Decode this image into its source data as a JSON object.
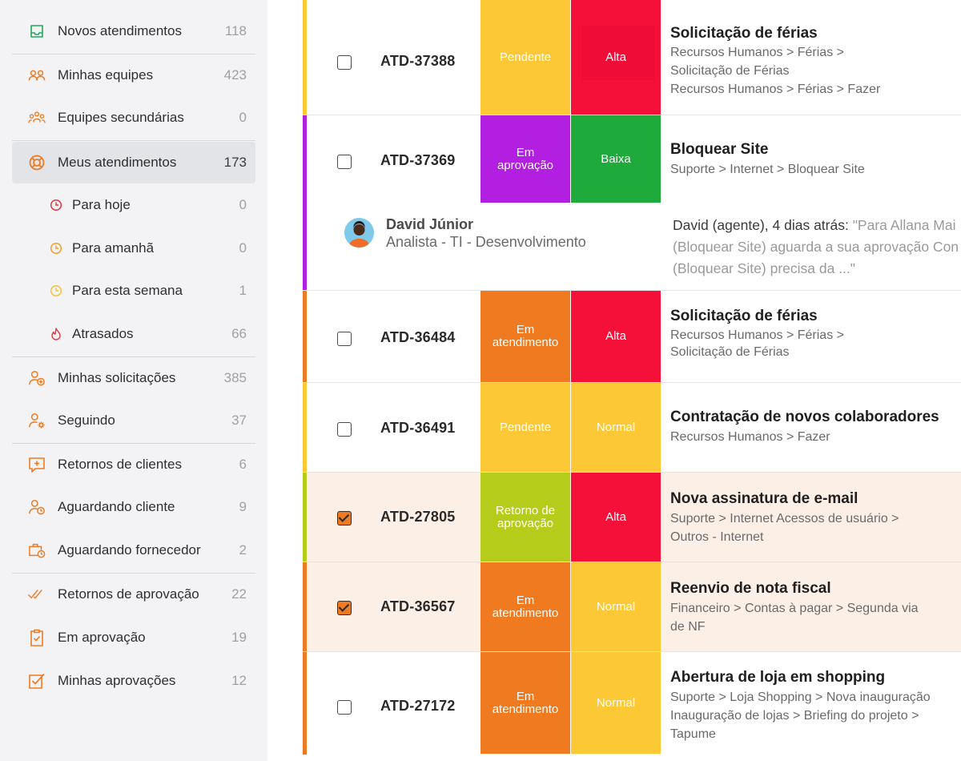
{
  "sidebar": {
    "items": [
      {
        "label": "Novos atendimentos",
        "count": "118",
        "icon": "inbox-icon"
      },
      {
        "label": "Minhas equipes",
        "count": "423",
        "icon": "team-icon"
      },
      {
        "label": "Equipes secundárias",
        "count": "0",
        "icon": "secondary-teams-icon"
      },
      {
        "label": "Meus atendimentos",
        "count": "173",
        "icon": "lifebuoy-icon"
      },
      {
        "label": "Para hoje",
        "count": "0",
        "icon": "clock-today-icon"
      },
      {
        "label": "Para amanhã",
        "count": "0",
        "icon": "clock-tomorrow-icon"
      },
      {
        "label": "Para esta semana",
        "count": "1",
        "icon": "clock-week-icon"
      },
      {
        "label": "Atrasados",
        "count": "66",
        "icon": "flame-icon"
      },
      {
        "label": "Minhas solicitações",
        "count": "385",
        "icon": "user-add-icon"
      },
      {
        "label": "Seguindo",
        "count": "37",
        "icon": "user-gear-icon"
      },
      {
        "label": "Retornos de clientes",
        "count": "6",
        "icon": "message-plus-icon"
      },
      {
        "label": "Aguardando cliente",
        "count": "9",
        "icon": "user-clock-icon"
      },
      {
        "label": "Aguardando fornecedor",
        "count": "2",
        "icon": "briefcase-clock-icon"
      },
      {
        "label": "Retornos de aprovação",
        "count": "22",
        "icon": "double-check-icon"
      },
      {
        "label": "Em aprovação",
        "count": "19",
        "icon": "clipboard-check-icon"
      },
      {
        "label": "Minhas aprovações",
        "count": "12",
        "icon": "checkbox-icon"
      }
    ]
  },
  "colors": {
    "accent": "#f07a1f",
    "pendente": "#fdc835",
    "em_aprovacao": "#b21fe0",
    "em_atendimento": "#f07a1f",
    "retorno_aprovacao": "#b5cd1a",
    "alta": "#f5103a",
    "baixa": "#1fab3c",
    "normal": "#fdc835",
    "selected_row": "#fcefe6"
  },
  "tickets": [
    {
      "id": "ATD-37388",
      "checked": false,
      "status": "Pendente",
      "priority": "Alta",
      "title": "Solicitação de férias",
      "path": [
        "Recursos Humanos > Férias >",
        "Solicitação de Férias",
        "Recursos Humanos > Férias > Fazer"
      ]
    },
    {
      "id": "ATD-37369",
      "checked": false,
      "status": "Em aprovação",
      "priority": "Baixa",
      "title": "Bloquear Site",
      "path": [
        "Suporte > Internet  > Bloquear Site"
      ]
    },
    {
      "id": "ATD-36484",
      "checked": false,
      "status": "Em atendimento",
      "priority": "Alta",
      "title": "Solicitação de férias",
      "path": [
        "Recursos Humanos > Férias >",
        "Solicitação de Férias"
      ]
    },
    {
      "id": "ATD-36491",
      "checked": false,
      "status": "Pendente",
      "priority": "Normal",
      "title": "Contratação de novos colaboradores",
      "path": [
        "Recursos Humanos >   Fazer"
      ]
    },
    {
      "id": "ATD-27805",
      "checked": true,
      "status": "Retorno de aprovação",
      "priority": "Alta",
      "title": "Nova assinatura de e-mail",
      "path": [
        "Suporte > Internet Acessos de usuário >",
        "Outros - Internet"
      ]
    },
    {
      "id": "ATD-36567",
      "checked": true,
      "status": "Em atendimento",
      "priority": "Normal",
      "title": "Reenvio de nota fiscal",
      "path": [
        "Financeiro > Contas à pagar > Segunda via",
        " de NF"
      ]
    },
    {
      "id": "ATD-27172",
      "checked": false,
      "status": "Em atendimento",
      "priority": "Normal",
      "title": "Abertura de loja em shopping",
      "path": [
        "Suporte > Loja Shopping > Nova inauguração",
        "Inauguração de lojas > Briefing do projeto >",
        "Tapume"
      ]
    }
  ],
  "comment": {
    "author_name": "David Júnior",
    "author_role": "Analista - TI - Desenvolvimento",
    "who": "David (agente), 4 dias atrás:",
    "line1": " \"Para Allana Mai",
    "line2": "(Bloquear Site) aguarda a sua aprovação Con",
    "line3": "(Bloquear Site) precisa da ...\""
  }
}
